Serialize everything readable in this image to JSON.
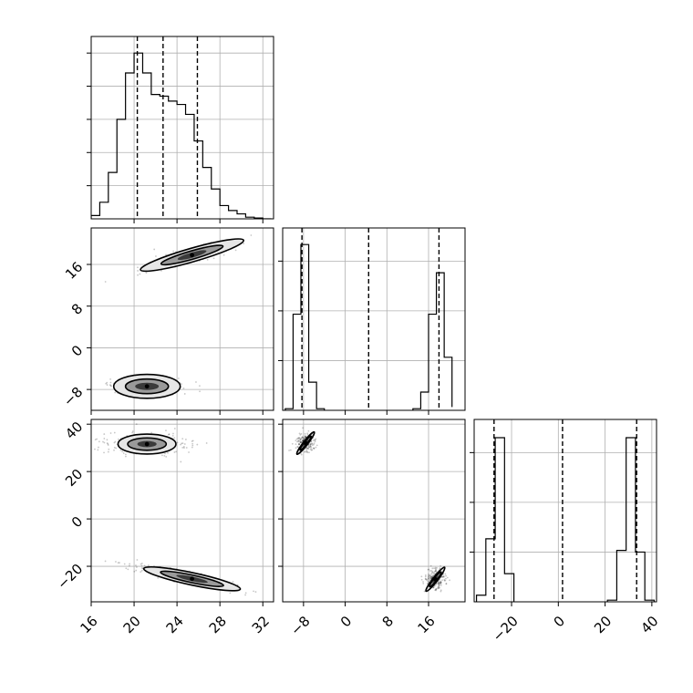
{
  "chart_data": {
    "type": "corner",
    "title": "",
    "color": "#000000",
    "grid": true,
    "hist_style": "step",
    "quantile_line_style": "dashed",
    "parameters": [
      "",
      "",
      ""
    ],
    "panels": [
      {
        "kind": "hist",
        "row": 0,
        "col": 0,
        "xlim": [
          16,
          33
        ],
        "ylim": [
          0,
          1.1
        ],
        "bin_edges": [
          16,
          16.8,
          17.6,
          18.4,
          19.2,
          20,
          20.8,
          21.6,
          22.4,
          23.2,
          24,
          24.8,
          25.6,
          26.4,
          27.2,
          28,
          28.8,
          29.6,
          30.4,
          31.2,
          32,
          32.8
        ],
        "counts": [
          0.02,
          0.1,
          0.28,
          0.6,
          0.88,
          1.0,
          0.88,
          0.75,
          0.74,
          0.71,
          0.69,
          0.63,
          0.47,
          0.31,
          0.18,
          0.08,
          0.05,
          0.03,
          0.01,
          0.005,
          0
        ],
        "quantiles": [
          20.3,
          22.7,
          25.9
        ],
        "x_ticks": [
          20,
          24,
          28,
          32
        ],
        "y_ticks": [
          0.2,
          0.4,
          0.6,
          0.8,
          1.0
        ]
      },
      {
        "kind": "hist",
        "row": 1,
        "col": 1,
        "xlim": [
          -12,
          23
        ],
        "ylim": [
          0,
          1.1
        ],
        "bin_edges": [
          -11.5,
          -10,
          -8.5,
          -7,
          -5.5,
          -4,
          13,
          14.5,
          16,
          17.5,
          19,
          20.5
        ],
        "counts": [
          0.01,
          0.58,
          1.0,
          0.17,
          0.01,
          null,
          0.01,
          0.11,
          0.58,
          0.83,
          0.32,
          0.02
        ],
        "quantiles": [
          -8.3,
          4.5,
          18.0
        ],
        "x_ticks": [
          -8,
          0,
          8,
          16
        ],
        "y_ticks": [
          0.3,
          0.6,
          0.9
        ]
      },
      {
        "kind": "hist",
        "row": 2,
        "col": 2,
        "xlim": [
          -36,
          42
        ],
        "ylim": [
          0,
          1.1
        ],
        "bin_edges": [
          -35,
          -31,
          -27,
          -23,
          -19,
          21,
          25,
          29,
          33,
          37,
          41
        ],
        "counts": [
          0.04,
          0.38,
          0.99,
          0.17,
          null,
          0.01,
          0.31,
          0.99,
          0.3,
          0.01
        ],
        "quantiles": [
          -27.5,
          1.8,
          33.5
        ],
        "x_ticks": [
          -20,
          0,
          20,
          40
        ],
        "y_ticks": [
          0.3,
          0.6,
          0.9
        ]
      },
      {
        "kind": "density2d",
        "row": 1,
        "col": 0,
        "xlim": [
          16,
          33
        ],
        "ylim": [
          -12,
          23
        ],
        "x_ticks": [
          16,
          20,
          24,
          28,
          32
        ],
        "y_ticks": [
          -8,
          0,
          8,
          16
        ],
        "y_tick_labels": [
          "−8",
          "0",
          "8",
          "16"
        ],
        "clusters": [
          {
            "center": [
              25.4,
              17.8
            ],
            "scatter_spread": [
              4.6,
              1.6
            ],
            "angle_deg": 16,
            "scatter_n": 360,
            "contour_radii": [
              [
                5.0,
                1.3
              ],
              [
                3.0,
                0.8
              ],
              [
                1.4,
                0.5
              ]
            ]
          },
          {
            "center": [
              21.2,
              -7.4
            ],
            "scatter_spread": [
              3.6,
              1.6
            ],
            "angle_deg": 0,
            "scatter_n": 260,
            "contour_radii": [
              [
                3.1,
                2.3
              ],
              [
                2.0,
                1.4
              ],
              [
                1.1,
                0.7
              ]
            ]
          }
        ]
      },
      {
        "kind": "density2d",
        "row": 2,
        "col": 0,
        "xlim": [
          16,
          33
        ],
        "ylim": [
          -35,
          42
        ],
        "x_ticks": [
          16,
          20,
          24,
          28,
          32
        ],
        "y_ticks": [
          -20,
          0,
          20,
          40
        ],
        "y_tick_labels": [
          "−20",
          "0",
          "20",
          "40"
        ],
        "clusters": [
          {
            "center": [
              21.2,
              31.6
            ],
            "scatter_spread": [
              4.2,
              4.8
            ],
            "angle_deg": 0,
            "scatter_n": 300,
            "contour_radii": [
              [
                2.7,
                4.2
              ],
              [
                1.8,
                2.6
              ],
              [
                0.9,
                1.3
              ]
            ]
          },
          {
            "center": [
              25.4,
              -25.3
            ],
            "scatter_spread": [
              5.8,
              2.8
            ],
            "angle_deg": -12,
            "scatter_n": 340,
            "contour_radii": [
              [
                4.6,
                2.6
              ],
              [
                3.0,
                1.6
              ],
              [
                1.5,
                0.9
              ]
            ]
          }
        ]
      },
      {
        "kind": "density2d",
        "row": 2,
        "col": 1,
        "xlim": [
          -12,
          23
        ],
        "ylim": [
          -35,
          42
        ],
        "x_ticks": [
          -8,
          0,
          8,
          16
        ],
        "y_ticks": [
          -20,
          0,
          20,
          40
        ],
        "clusters": [
          {
            "center": [
              -7.6,
              32.0
            ],
            "scatter_spread": [
              1.7,
              4.6
            ],
            "angle_deg": 52,
            "scatter_n": 260,
            "contour_radii": [
              [
                2.7,
                0.9
              ],
              [
                1.7,
                0.6
              ],
              [
                0.9,
                0.3
              ]
            ]
          },
          {
            "center": [
              17.3,
              -25.5
            ],
            "scatter_spread": [
              2.0,
              5.0
            ],
            "angle_deg": 52,
            "scatter_n": 260,
            "contour_radii": [
              [
                2.9,
                1.0
              ],
              [
                1.8,
                0.65
              ],
              [
                0.9,
                0.35
              ]
            ]
          }
        ]
      }
    ],
    "x_tick_labels": {
      "col0": [
        "16",
        "20",
        "24",
        "28",
        "32"
      ],
      "col1": [
        "−8",
        "0",
        "8",
        "16"
      ],
      "col2": [
        "−20",
        "0",
        "20",
        "40"
      ]
    }
  }
}
